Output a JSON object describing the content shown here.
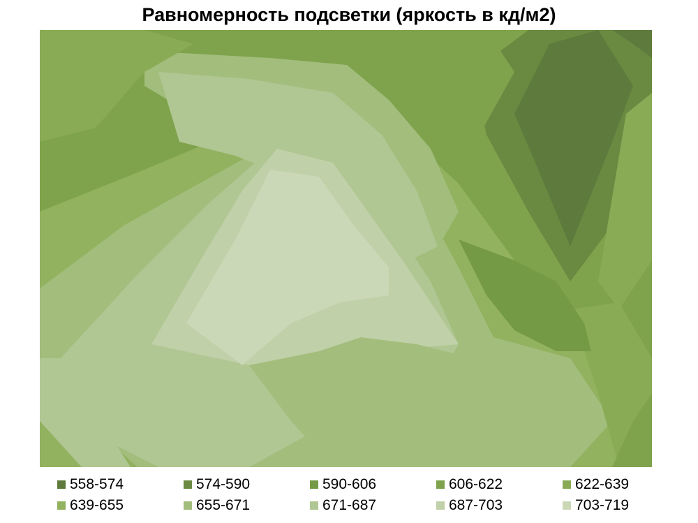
{
  "chart_data": {
    "type": "heatmap",
    "title": "Равномерность подсветки (яркость в кд/м2)",
    "legend": [
      {
        "range": "558-574",
        "color": "#5e7a3d"
      },
      {
        "range": "574-590",
        "color": "#6a8a41"
      },
      {
        "range": "590-606",
        "color": "#759a46"
      },
      {
        "range": "606-622",
        "color": "#7ea34c"
      },
      {
        "range": "622-639",
        "color": "#89ab56"
      },
      {
        "range": "639-655",
        "color": "#92b25f"
      },
      {
        "range": "655-671",
        "color": "#a3bd7c"
      },
      {
        "range": "671-687",
        "color": "#b0c693"
      },
      {
        "range": "687-703",
        "color": "#c0d0a8"
      },
      {
        "range": "703-719",
        "color": "#cbd8b7"
      }
    ],
    "legend_position": "bottom"
  }
}
